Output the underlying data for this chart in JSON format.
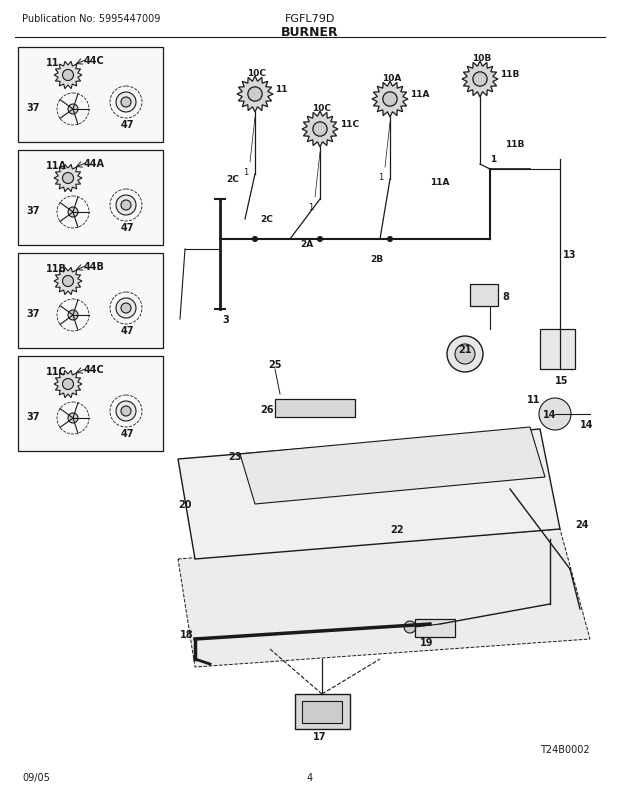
{
  "title": "BURNER",
  "subtitle": "FGFL79D",
  "pub_no": "Publication No: 5995447009",
  "date": "09/05",
  "page": "4",
  "watermark": "T24B0002",
  "bg_color": "#ffffff",
  "line_color": "#1a1a1a",
  "box_bg": "#f5f5f5",
  "fig_width": 6.2,
  "fig_height": 8.03,
  "dpi": 100
}
